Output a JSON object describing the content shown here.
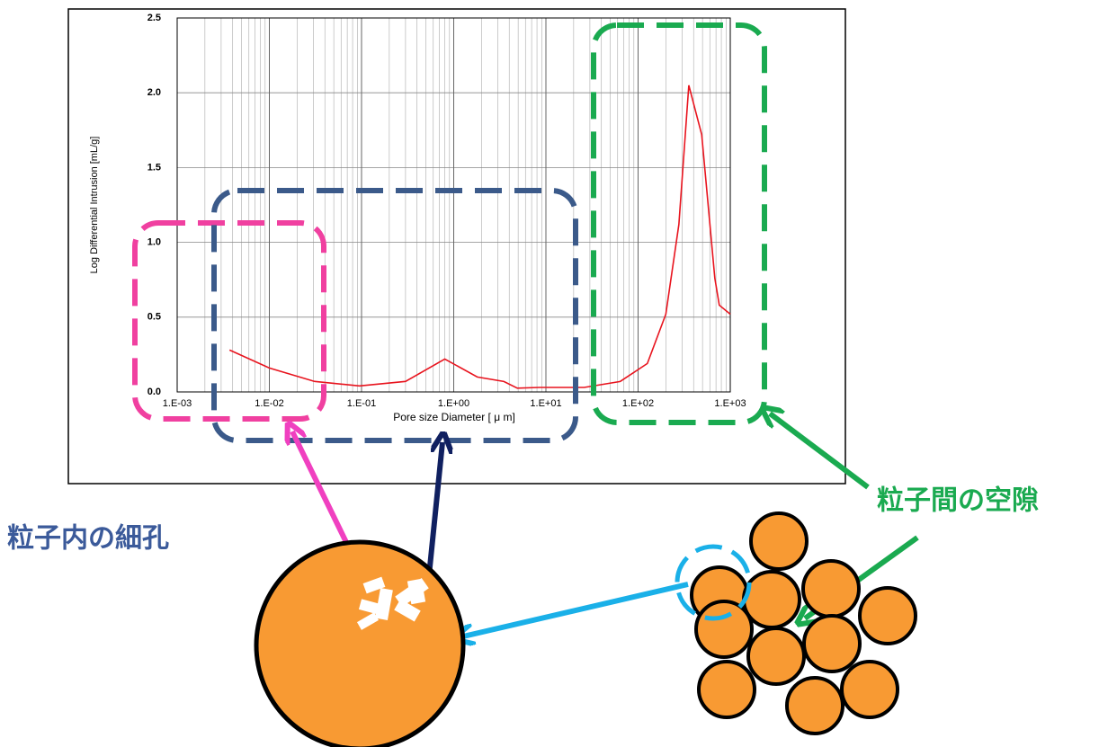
{
  "chart_data": {
    "type": "line",
    "xscale": "log",
    "grid": true,
    "x_label": "Pore size Diameter [ μ m]",
    "y_label": "Log Differential Intrusion [mL/g]",
    "xlim": [
      0.001,
      1000
    ],
    "ylim": [
      0,
      2.5
    ],
    "xticks": [
      {
        "value": 0.001,
        "label": "1.E-03"
      },
      {
        "value": 0.01,
        "label": "1.E-02"
      },
      {
        "value": 0.1,
        "label": "1.E-01"
      },
      {
        "value": 1,
        "label": "1.E+00"
      },
      {
        "value": 10,
        "label": "1.E+01"
      },
      {
        "value": 100,
        "label": "1.E+02"
      },
      {
        "value": 1000,
        "label": "1.E+03"
      }
    ],
    "yticks": [
      {
        "value": 0,
        "label": "0.0"
      },
      0.5,
      {
        "value": 1,
        "label": "1.0"
      },
      1.5,
      {
        "value": 2,
        "label": "2.0"
      },
      2.5
    ],
    "series": [
      {
        "color": "#e8141e",
        "x": [
          0.0037,
          0.01,
          0.031,
          0.095,
          0.3,
          0.8,
          1.8,
          3.5,
          4.9,
          8.5,
          26,
          64,
          126,
          200,
          277,
          355,
          490,
          680,
          760,
          1000
        ],
        "values": [
          0.28,
          0.16,
          0.07,
          0.04,
          0.07,
          0.22,
          0.1,
          0.07,
          0.025,
          0.03,
          0.03,
          0.07,
          0.19,
          0.52,
          1.12,
          2.05,
          1.72,
          0.76,
          0.58,
          0.52
        ]
      }
    ],
    "annotations": [
      {
        "text": "粒子内の細孔",
        "color": "#3b5a9a"
      },
      {
        "text": "粒子間の空隙",
        "color": "#1aaa50"
      }
    ]
  }
}
